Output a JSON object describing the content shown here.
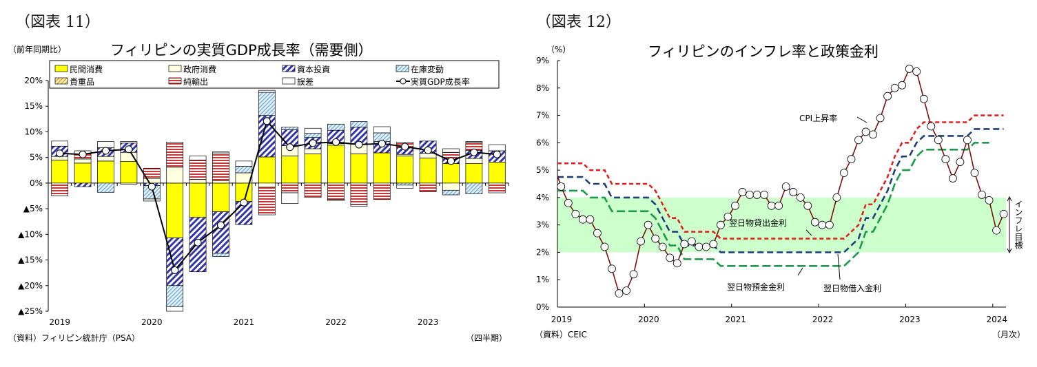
{
  "figure_left": {
    "label": "（図表 11）"
  },
  "figure_right": {
    "label": "（図表 12）"
  },
  "chart_data": [
    {
      "type": "bar",
      "stacked": true,
      "title": "フィリピンの実質GDP成長率（需要側）",
      "ylabel": "（前年同期比）",
      "xlabel": "（四半期）",
      "source": "（資料）フィリピン統計庁（PSA）",
      "ylim": [
        -25,
        20
      ],
      "yticks": [
        20,
        15,
        10,
        5,
        0,
        -5,
        -10,
        -15,
        -20,
        -25
      ],
      "ytick_labels": [
        "20%",
        "15%",
        "10%",
        "5%",
        "0%",
        "▲5%",
        "▲10%",
        "▲15%",
        "▲20%",
        "▲25%"
      ],
      "year_labels": [
        "2019",
        "2020",
        "2021",
        "2022",
        "2023"
      ],
      "categories": [
        "2019Q1",
        "2019Q2",
        "2019Q3",
        "2019Q4",
        "2020Q1",
        "2020Q2",
        "2020Q3",
        "2020Q4",
        "2021Q1",
        "2021Q2",
        "2021Q3",
        "2021Q4",
        "2022Q1",
        "2022Q2",
        "2022Q3",
        "2022Q4",
        "2023Q1",
        "2023Q2",
        "2023Q3",
        "2023Q4"
      ],
      "legend_position": "top",
      "series": [
        {
          "name": "民間消費",
          "key": "yellow",
          "color": "#ffff00",
          "values": [
            4.5,
            3.9,
            4.3,
            4.2,
            0,
            -10.7,
            -6.7,
            -5.6,
            -3.6,
            5.1,
            5.3,
            5.7,
            7.4,
            5.7,
            5.9,
            5.3,
            4.9,
            3.8,
            3.8,
            4.1
          ]
        },
        {
          "name": "政府消費",
          "key": "cream",
          "color": "#ffffe0",
          "values": [
            0.7,
            0.8,
            0.9,
            1.8,
            0.9,
            3.1,
            0.7,
            0.5,
            2.0,
            -0.8,
            2.0,
            1.0,
            0.3,
            1.9,
            0,
            0.3,
            0.9,
            -1.4,
            1.0,
            0
          ]
        },
        {
          "name": "資本投資",
          "key": "capital",
          "color": "#3333aa",
          "values": [
            2.0,
            -0.7,
            1.7,
            1.8,
            -0.5,
            -9.3,
            -10.6,
            -8.1,
            -4.5,
            8.1,
            3.1,
            2.2,
            2.6,
            3.3,
            2.2,
            1.3,
            2.4,
            1.1,
            1.6,
            2.2
          ]
        },
        {
          "name": "在庫変動",
          "key": "inventory",
          "color": "#9cc8e8",
          "values": [
            0,
            0,
            -1.8,
            0,
            -2.6,
            -4.1,
            0,
            -0.6,
            1.3,
            4.5,
            0.5,
            0.8,
            1.2,
            1.1,
            1.7,
            -0.4,
            0,
            -0.9,
            -2.1,
            0
          ]
        },
        {
          "name": "貴重品",
          "key": "valuables",
          "color": "#e8c060",
          "values": [
            0,
            0,
            0,
            0,
            0,
            0,
            0,
            0,
            0,
            0,
            0,
            0,
            0,
            0,
            0,
            0,
            0,
            0,
            0,
            0
          ]
        },
        {
          "name": "純輸出",
          "key": "netexports",
          "color": "#cc3333",
          "values": [
            -2.5,
            1.0,
            0,
            -0.2,
            2.0,
            4.9,
            3.8,
            5.4,
            0,
            -5.4,
            -1.9,
            -2.8,
            -3.2,
            -4.2,
            -3.2,
            1.1,
            -1.7,
            1.1,
            1.6,
            -1.9
          ]
        },
        {
          "name": "誤差",
          "key": "discrepancy",
          "color": "#ffffff",
          "values": [
            1.0,
            0.6,
            1.2,
            0.3,
            -0.4,
            -0.9,
            0.8,
            0.2,
            1.0,
            0.4,
            -2.1,
            1.0,
            -0.2,
            -0.3,
            1.2,
            -0.6,
            0,
            0.7,
            0.1,
            1.2
          ]
        },
        {
          "name": "実質GDP成長率",
          "key": "gdp",
          "color": "#000000",
          "type": "line",
          "values": [
            5.8,
            5.6,
            6.3,
            6.6,
            -0.7,
            -17.0,
            -11.6,
            -8.2,
            -3.8,
            12.1,
            7.0,
            7.8,
            8.0,
            7.5,
            7.7,
            7.1,
            6.4,
            4.3,
            6.0,
            5.6
          ]
        }
      ]
    },
    {
      "type": "line",
      "title": "フィリピンのインフレ率と政策金利",
      "ylabel": "（%）",
      "xlabel": "（月次）",
      "source": "（資料）CEIC",
      "ylim": [
        0,
        9
      ],
      "yticks": [
        0,
        1,
        2,
        3,
        4,
        5,
        6,
        7,
        8,
        9
      ],
      "ytick_labels": [
        "0%",
        "1%",
        "2%",
        "3%",
        "4%",
        "5%",
        "6%",
        "7%",
        "8%",
        "9%"
      ],
      "year_labels": [
        "2019",
        "2020",
        "2021",
        "2022",
        "2023",
        "2024"
      ],
      "x_start": "2019-01",
      "inflation_target": {
        "label": "インフレ目標",
        "range": [
          2,
          4
        ],
        "color": "#ccffcc"
      },
      "series": [
        {
          "name": "CPI上昇率",
          "key": "cpi",
          "color": "#7a1010",
          "annotation": "CPI上昇率",
          "values": [
            4.4,
            3.8,
            3.4,
            3.2,
            3.2,
            2.7,
            2.2,
            1.4,
            0.5,
            0.6,
            1.2,
            2.4,
            3.0,
            2.5,
            2.2,
            1.8,
            1.6,
            2.3,
            2.4,
            2.2,
            2.2,
            2.3,
            3.0,
            3.3,
            3.7,
            4.2,
            4.1,
            4.1,
            4.1,
            3.7,
            3.7,
            4.4,
            4.2,
            4.0,
            3.7,
            3.1,
            3.0,
            3.0,
            4.0,
            4.9,
            5.4,
            6.1,
            6.4,
            6.3,
            6.9,
            7.7,
            8.0,
            8.1,
            8.7,
            8.6,
            7.6,
            6.6,
            6.1,
            5.4,
            4.7,
            5.3,
            6.1,
            4.9,
            4.1,
            3.9,
            2.8,
            3.4
          ]
        },
        {
          "name": "翌日物貸出金利",
          "key": "lending",
          "color": "#e02020",
          "annotation": "翌日物貸出金利",
          "values": [
            5.25,
            5.25,
            5.25,
            5.25,
            5.0,
            5.0,
            5.0,
            4.5,
            4.5,
            4.5,
            4.5,
            4.5,
            4.5,
            4.25,
            3.75,
            3.25,
            3.25,
            2.75,
            2.75,
            2.75,
            2.75,
            2.75,
            2.5,
            2.5,
            2.5,
            2.5,
            2.5,
            2.5,
            2.5,
            2.5,
            2.5,
            2.5,
            2.5,
            2.5,
            2.5,
            2.5,
            2.5,
            2.5,
            2.5,
            2.5,
            2.75,
            3.0,
            3.75,
            3.75,
            4.25,
            4.75,
            5.5,
            6.0,
            6.0,
            6.5,
            6.75,
            6.75,
            6.75,
            6.75,
            6.75,
            6.75,
            6.75,
            7.0,
            7.0,
            7.0,
            7.0,
            7.0
          ]
        },
        {
          "name": "翌日物借入金利",
          "key": "rrp",
          "color": "#1f3f7a",
          "annotation": "翌日物借入金利",
          "values": [
            4.75,
            4.75,
            4.75,
            4.75,
            4.5,
            4.5,
            4.5,
            4.0,
            4.0,
            4.0,
            4.0,
            4.0,
            4.0,
            3.75,
            3.25,
            2.75,
            2.75,
            2.25,
            2.25,
            2.25,
            2.25,
            2.25,
            2.0,
            2.0,
            2.0,
            2.0,
            2.0,
            2.0,
            2.0,
            2.0,
            2.0,
            2.0,
            2.0,
            2.0,
            2.0,
            2.0,
            2.0,
            2.0,
            2.0,
            2.0,
            2.25,
            2.5,
            3.25,
            3.25,
            3.75,
            4.25,
            5.0,
            5.5,
            5.5,
            6.0,
            6.25,
            6.25,
            6.25,
            6.25,
            6.25,
            6.25,
            6.25,
            6.5,
            6.5,
            6.5,
            6.5,
            6.5
          ]
        },
        {
          "name": "翌日物預金金利",
          "key": "deposit",
          "color": "#1a9a4a",
          "annotation": "翌日物預金金利",
          "values": [
            4.25,
            4.25,
            4.25,
            4.25,
            4.0,
            4.0,
            4.0,
            3.5,
            3.5,
            3.5,
            3.5,
            3.5,
            3.5,
            3.25,
            2.75,
            2.25,
            2.25,
            1.75,
            1.75,
            1.75,
            1.75,
            1.75,
            1.5,
            1.5,
            1.5,
            1.5,
            1.5,
            1.5,
            1.5,
            1.5,
            1.5,
            1.5,
            1.5,
            1.5,
            1.5,
            1.5,
            1.5,
            1.5,
            1.5,
            1.5,
            1.75,
            2.0,
            2.75,
            2.75,
            3.25,
            3.75,
            4.5,
            5.0,
            5.0,
            5.5,
            5.75,
            5.75,
            5.75,
            5.75,
            5.75,
            5.75,
            5.75,
            6.0,
            6.0,
            6.0,
            null,
            null
          ]
        }
      ]
    }
  ]
}
